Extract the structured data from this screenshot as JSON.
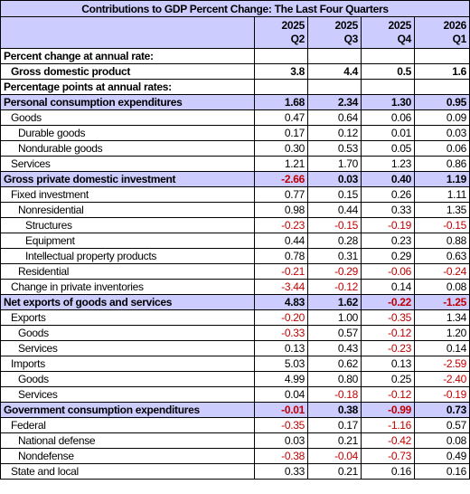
{
  "title": "Contributions to GDP Percent Change: The Last Four Quarters",
  "columns": [
    {
      "year": "2025",
      "quarter": "Q2"
    },
    {
      "year": "2025",
      "quarter": "Q3"
    },
    {
      "year": "2025",
      "quarter": "Q4"
    },
    {
      "year": "2026",
      "quarter": "Q1"
    }
  ],
  "rows": [
    {
      "label": "Percent change at annual rate:",
      "style": "heading",
      "level": 0
    },
    {
      "label": "Gross domestic product",
      "style": "bold",
      "level": 1,
      "values": [
        "3.8",
        "4.4",
        "0.5",
        "1.6"
      ]
    },
    {
      "label": "Percentage points at annual rates:",
      "style": "heading",
      "level": 0
    },
    {
      "label": "Personal consumption expenditures",
      "style": "section",
      "level": 0,
      "values": [
        "1.68",
        "2.34",
        "1.30",
        "0.95"
      ]
    },
    {
      "label": "Goods",
      "level": 1,
      "values": [
        "0.47",
        "0.64",
        "0.06",
        "0.09"
      ]
    },
    {
      "label": "Durable goods",
      "level": 2,
      "values": [
        "0.17",
        "0.12",
        "0.01",
        "0.03"
      ]
    },
    {
      "label": "Nondurable goods",
      "level": 2,
      "values": [
        "0.30",
        "0.53",
        "0.05",
        "0.06"
      ]
    },
    {
      "label": "Services",
      "level": 1,
      "values": [
        "1.21",
        "1.70",
        "1.23",
        "0.86"
      ]
    },
    {
      "label": "Gross private domestic investment",
      "style": "section",
      "level": 0,
      "values": [
        "-2.66",
        "0.03",
        "0.40",
        "1.19"
      ]
    },
    {
      "label": "Fixed investment",
      "level": 1,
      "values": [
        "0.77",
        "0.15",
        "0.26",
        "1.11"
      ]
    },
    {
      "label": "Nonresidential",
      "level": 2,
      "values": [
        "0.98",
        "0.44",
        "0.33",
        "1.35"
      ]
    },
    {
      "label": "Structures",
      "level": 3,
      "values": [
        "-0.23",
        "-0.15",
        "-0.19",
        "-0.15"
      ]
    },
    {
      "label": "Equipment",
      "level": 3,
      "values": [
        "0.44",
        "0.28",
        "0.23",
        "0.88"
      ]
    },
    {
      "label": "Intellectual property products",
      "level": 3,
      "values": [
        "0.78",
        "0.31",
        "0.29",
        "0.63"
      ]
    },
    {
      "label": "Residential",
      "level": 2,
      "values": [
        "-0.21",
        "-0.29",
        "-0.06",
        "-0.24"
      ]
    },
    {
      "label": "Change in private inventories",
      "level": 1,
      "values": [
        "-3.44",
        "-0.12",
        "0.14",
        "0.08"
      ]
    },
    {
      "label": "Net exports of goods and services",
      "style": "section",
      "level": 0,
      "values": [
        "4.83",
        "1.62",
        "-0.22",
        "-1.25"
      ]
    },
    {
      "label": "Exports",
      "level": 1,
      "values": [
        "-0.20",
        "1.00",
        "-0.35",
        "1.34"
      ]
    },
    {
      "label": "Goods",
      "level": 2,
      "values": [
        "-0.33",
        "0.57",
        "-0.12",
        "1.20"
      ]
    },
    {
      "label": "Services",
      "level": 2,
      "values": [
        "0.13",
        "0.43",
        "-0.23",
        "0.14"
      ]
    },
    {
      "label": "Imports",
      "level": 1,
      "values": [
        "5.03",
        "0.62",
        "0.13",
        "-2.59"
      ]
    },
    {
      "label": "Goods",
      "level": 2,
      "values": [
        "4.99",
        "0.80",
        "0.25",
        "-2.40"
      ]
    },
    {
      "label": "Services",
      "level": 2,
      "values": [
        "0.04",
        "-0.18",
        "-0.12",
        "-0.19"
      ]
    },
    {
      "label": "Government consumption expenditures",
      "style": "section",
      "level": 0,
      "values": [
        "-0.01",
        "0.38",
        "-0.99",
        "0.73"
      ]
    },
    {
      "label": "Federal",
      "level": 1,
      "values": [
        "-0.35",
        "0.17",
        "-1.16",
        "0.57"
      ]
    },
    {
      "label": "National defense",
      "level": 2,
      "values": [
        "0.03",
        "0.21",
        "-0.42",
        "0.08"
      ]
    },
    {
      "label": "Nondefense",
      "level": 2,
      "values": [
        "-0.38",
        "-0.04",
        "-0.73",
        "0.49"
      ]
    },
    {
      "label": "State and local",
      "level": 1,
      "values": [
        "0.33",
        "0.21",
        "0.16",
        "0.16"
      ]
    }
  ]
}
